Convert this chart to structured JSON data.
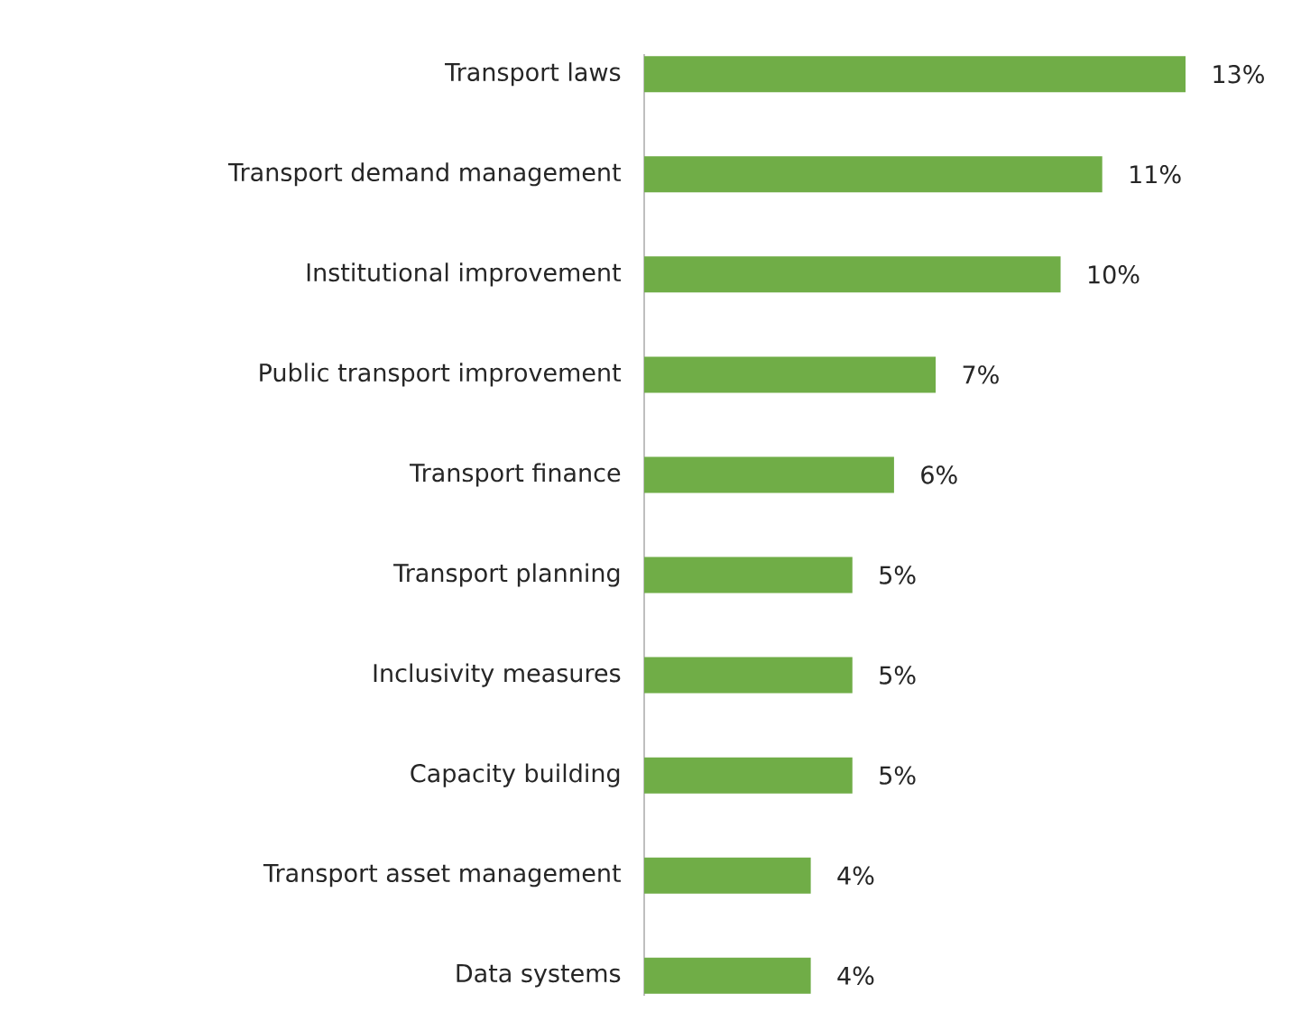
{
  "chart_data": {
    "type": "bar",
    "orientation": "horizontal",
    "color": "#70ad47",
    "categories": [
      "Transport laws",
      "Transport demand management",
      "Institutional improvement",
      "Public transport improvement",
      "Transport finance",
      "Transport planning",
      "Inclusivity measures",
      "Capacity building",
      "Transport asset management",
      "Data systems"
    ],
    "values": [
      13,
      11,
      10,
      7,
      6,
      5,
      5,
      5,
      4,
      4
    ],
    "value_labels": [
      "13%",
      "11%",
      "10%",
      "7%",
      "6%",
      "5%",
      "5%",
      "5%",
      "4%",
      "4%"
    ]
  }
}
